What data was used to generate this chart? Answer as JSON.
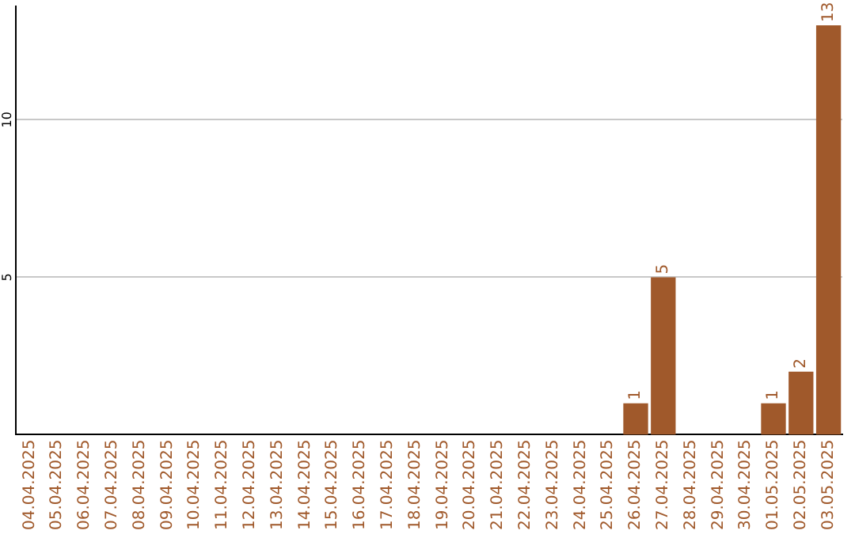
{
  "chart_data": {
    "type": "bar",
    "categories": [
      "04.04.2025",
      "05.04.2025",
      "06.04.2025",
      "07.04.2025",
      "08.04.2025",
      "09.04.2025",
      "10.04.2025",
      "11.04.2025",
      "12.04.2025",
      "13.04.2025",
      "14.04.2025",
      "15.04.2025",
      "16.04.2025",
      "17.04.2025",
      "18.04.2025",
      "19.04.2025",
      "20.04.2025",
      "21.04.2025",
      "22.04.2025",
      "23.04.2025",
      "24.04.2025",
      "25.04.2025",
      "26.04.2025",
      "27.04.2025",
      "28.04.2025",
      "29.04.2025",
      "30.04.2025",
      "01.05.2025",
      "02.05.2025",
      "03.05.2025"
    ],
    "values": [
      0,
      0,
      0,
      0,
      0,
      0,
      0,
      0,
      0,
      0,
      0,
      0,
      0,
      0,
      0,
      0,
      0,
      0,
      0,
      0,
      0,
      0,
      1,
      5,
      0,
      0,
      0,
      1,
      2,
      13
    ],
    "value_labels": [
      null,
      null,
      null,
      null,
      null,
      null,
      null,
      null,
      null,
      null,
      null,
      null,
      null,
      null,
      null,
      null,
      null,
      null,
      null,
      null,
      null,
      null,
      "1",
      "5",
      null,
      null,
      null,
      "1",
      "2",
      "13"
    ],
    "color": "#a0592b",
    "ylim": [
      0,
      13.6
    ],
    "yticks": [
      5,
      10
    ],
    "grid": "y",
    "legend": false
  }
}
